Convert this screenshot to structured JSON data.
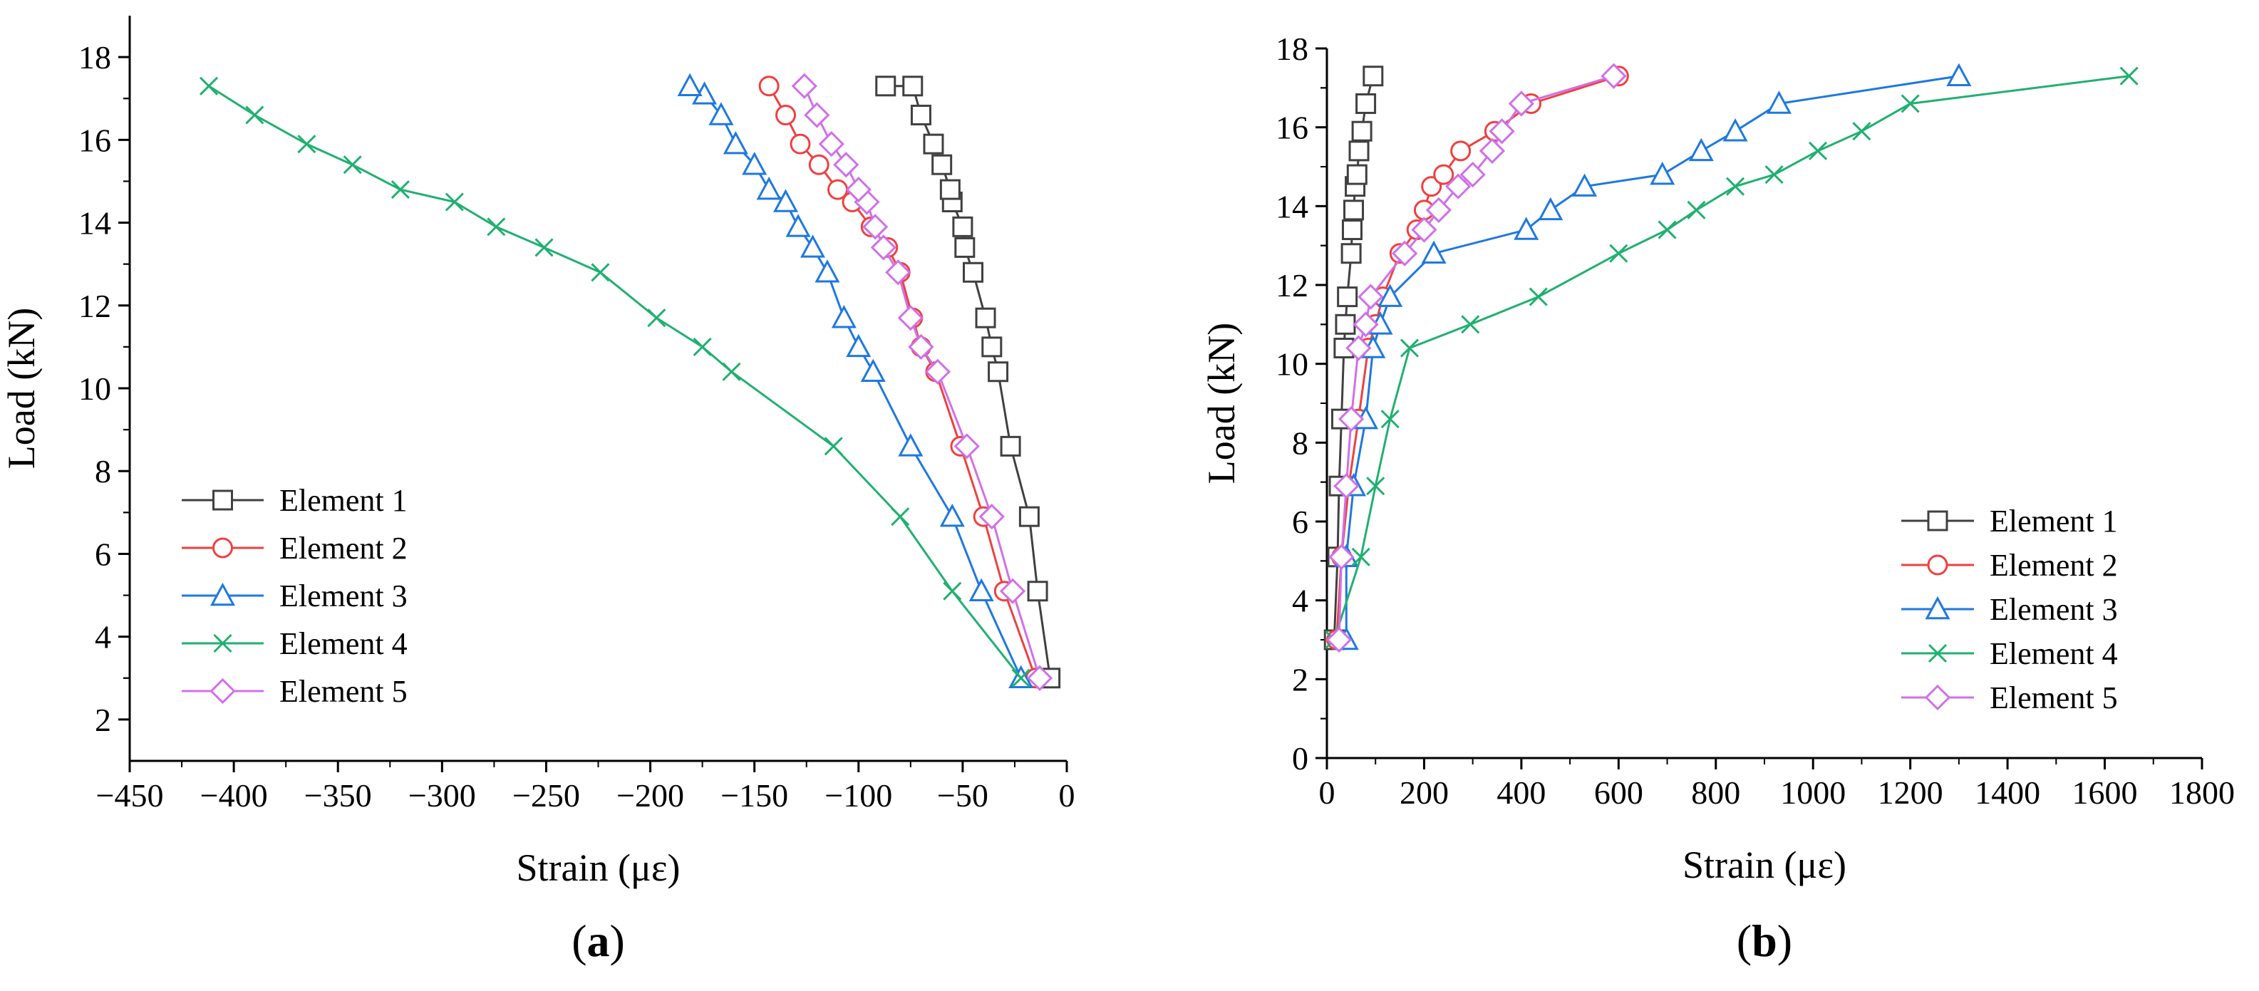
{
  "chart_data": [
    {
      "id": "a",
      "panel_label": "a",
      "type": "line",
      "xlabel": "Strain (με)",
      "ylabel": "Load (kN)",
      "xlim": [
        -450,
        0
      ],
      "ylim": [
        1,
        19
      ],
      "xticks": [
        -450,
        -400,
        -350,
        -300,
        -250,
        -200,
        -150,
        -100,
        -50,
        0
      ],
      "xtick_labels": [
        "−450",
        "−400",
        "−350",
        "−300",
        "−250",
        "−200",
        "−150",
        "−100",
        "−50",
        "0"
      ],
      "yticks": [
        2,
        4,
        6,
        8,
        10,
        12,
        14,
        16,
        18
      ],
      "ytick_labels": [
        "2",
        "4",
        "6",
        "8",
        "10",
        "12",
        "14",
        "16",
        "18"
      ],
      "grid": false,
      "legend": "left-lower",
      "series": [
        {
          "name": "Element 1",
          "color": "#404040",
          "marker": "square",
          "x": [
            -8,
            -14,
            -18,
            -27,
            -33,
            -36,
            -39,
            -45,
            -49,
            -50,
            -55,
            -56,
            -60,
            -64,
            -70,
            -74,
            -87
          ],
          "y": [
            3.0,
            5.1,
            6.9,
            8.6,
            10.4,
            11.0,
            11.7,
            12.8,
            13.4,
            13.9,
            14.5,
            14.8,
            15.4,
            15.9,
            16.6,
            17.3,
            17.3
          ]
        },
        {
          "name": "Element 2",
          "color": "#f04040",
          "marker": "circle",
          "x": [
            -15,
            -30,
            -40,
            -51,
            -63,
            -70,
            -74,
            -80,
            -86,
            -94,
            -103,
            -110,
            -119,
            -128,
            -135,
            -143
          ],
          "y": [
            3.0,
            5.1,
            6.9,
            8.6,
            10.4,
            11.0,
            11.7,
            12.8,
            13.4,
            13.9,
            14.5,
            14.8,
            15.4,
            15.9,
            16.6,
            17.3
          ]
        },
        {
          "name": "Element 3",
          "color": "#1e78e0",
          "marker": "triangle",
          "x": [
            -22,
            -41,
            -55,
            -75,
            -93,
            -100,
            -107,
            -115,
            -122,
            -129,
            -135,
            -143,
            -150,
            -159,
            -166,
            -174,
            -181
          ],
          "y": [
            3.0,
            5.1,
            6.9,
            8.6,
            10.4,
            11.0,
            11.7,
            12.8,
            13.4,
            13.9,
            14.5,
            14.8,
            15.4,
            15.9,
            16.6,
            17.1,
            17.3
          ]
        },
        {
          "name": "Element 4",
          "color": "#20b070",
          "marker": "x",
          "x": [
            -22,
            -55,
            -80,
            -112,
            -161,
            -175,
            -197,
            -224,
            -251,
            -274,
            -294,
            -320,
            -343,
            -365,
            -390,
            -412
          ],
          "y": [
            3.0,
            5.1,
            6.9,
            8.6,
            10.4,
            11.0,
            11.7,
            12.8,
            13.4,
            13.9,
            14.5,
            14.8,
            15.4,
            15.9,
            16.6,
            17.3
          ]
        },
        {
          "name": "Element 5",
          "color": "#d070e8",
          "marker": "diamond",
          "x": [
            -13,
            -26,
            -36,
            -48,
            -62,
            -70,
            -75,
            -81,
            -88,
            -92,
            -96,
            -100,
            -106,
            -113,
            -120,
            -126
          ],
          "y": [
            3.0,
            5.1,
            6.9,
            8.6,
            10.4,
            11.0,
            11.7,
            12.8,
            13.4,
            13.9,
            14.5,
            14.8,
            15.4,
            15.9,
            16.6,
            17.3
          ]
        }
      ]
    },
    {
      "id": "b",
      "panel_label": "b",
      "type": "line",
      "xlabel": "Strain (με)",
      "ylabel": "Load (kN)",
      "xlim": [
        0,
        1800
      ],
      "ylim": [
        0,
        18
      ],
      "xticks": [
        0,
        200,
        400,
        600,
        800,
        1000,
        1200,
        1400,
        1600,
        1800
      ],
      "xtick_labels": [
        "0",
        "200",
        "400",
        "600",
        "800",
        "1000",
        "1200",
        "1400",
        "1600",
        "1800"
      ],
      "yticks": [
        0,
        2,
        4,
        6,
        8,
        10,
        12,
        14,
        16,
        18
      ],
      "ytick_labels": [
        "0",
        "2",
        "4",
        "6",
        "8",
        "10",
        "12",
        "14",
        "16",
        "18"
      ],
      "grid": false,
      "legend": "bottom-right",
      "series": [
        {
          "name": "Element 1",
          "color": "#404040",
          "marker": "square",
          "x": [
            15,
            22,
            25,
            30,
            35,
            38,
            42,
            50,
            52,
            55,
            58,
            62,
            66,
            72,
            80,
            95
          ],
          "y": [
            3.0,
            5.1,
            6.9,
            8.6,
            10.4,
            11.0,
            11.7,
            12.8,
            13.4,
            13.9,
            14.5,
            14.8,
            15.4,
            15.9,
            16.6,
            17.3
          ]
        },
        {
          "name": "Element 2",
          "color": "#f04040",
          "marker": "circle",
          "x": [
            20,
            30,
            45,
            65,
            85,
            100,
            115,
            150,
            185,
            200,
            215,
            240,
            275,
            345,
            420,
            600
          ],
          "y": [
            3.0,
            5.1,
            6.9,
            8.6,
            10.4,
            11.0,
            11.7,
            12.8,
            13.4,
            13.9,
            14.5,
            14.8,
            15.4,
            15.9,
            16.6,
            17.3
          ]
        },
        {
          "name": "Element 3",
          "color": "#1e78e0",
          "marker": "triangle",
          "x": [
            40,
            40,
            55,
            80,
            95,
            110,
            130,
            220,
            410,
            460,
            530,
            690,
            770,
            840,
            930,
            1300
          ],
          "y": [
            3.0,
            5.1,
            6.9,
            8.6,
            10.4,
            11.0,
            11.7,
            12.8,
            13.4,
            13.9,
            14.5,
            14.8,
            15.4,
            15.9,
            16.6,
            17.3
          ]
        },
        {
          "name": "Element 4",
          "color": "#20b070",
          "marker": "x",
          "x": [
            15,
            70,
            100,
            130,
            170,
            295,
            435,
            600,
            700,
            760,
            840,
            920,
            1010,
            1100,
            1200,
            1650
          ],
          "y": [
            3.0,
            5.1,
            6.9,
            8.6,
            10.4,
            11.0,
            11.7,
            12.8,
            13.4,
            13.9,
            14.5,
            14.8,
            15.4,
            15.9,
            16.6,
            17.3
          ]
        },
        {
          "name": "Element 5",
          "color": "#d070e8",
          "marker": "diamond",
          "x": [
            25,
            30,
            40,
            50,
            65,
            80,
            90,
            160,
            200,
            230,
            270,
            300,
            340,
            360,
            400,
            590
          ],
          "y": [
            3.0,
            5.1,
            6.9,
            8.6,
            10.4,
            11.0,
            11.7,
            12.8,
            13.4,
            13.9,
            14.5,
            14.8,
            15.4,
            15.9,
            16.6,
            17.3
          ]
        }
      ]
    }
  ]
}
